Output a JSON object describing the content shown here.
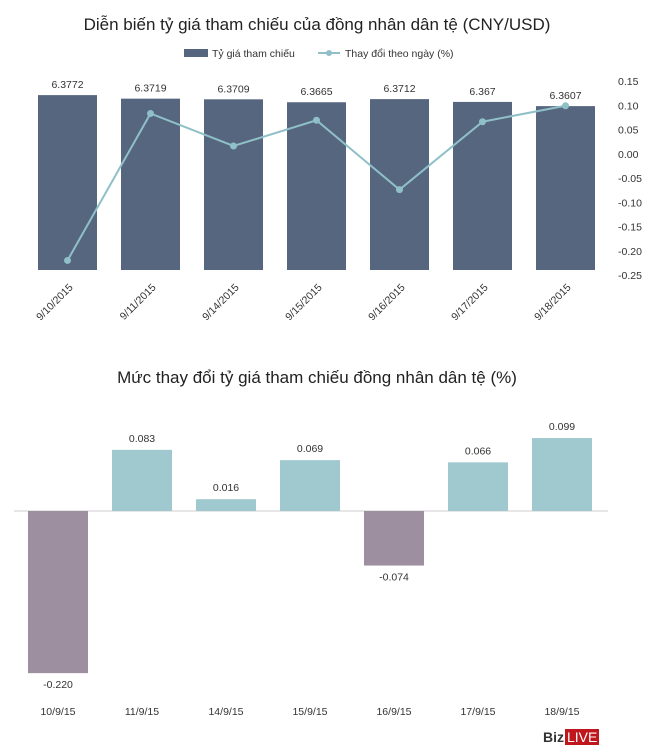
{
  "chart_data": [
    {
      "type": "bar+line",
      "title": "Diễn biến tỷ giá tham chiếu của đồng nhân dân tệ (CNY/USD)",
      "categories": [
        "9/10/2015",
        "9/11/2015",
        "9/14/2015",
        "9/15/2015",
        "9/16/2015",
        "9/17/2015",
        "9/18/2015"
      ],
      "series": [
        {
          "name": "Tỷ giá tham chiếu",
          "type": "bar",
          "axis": "left",
          "values": [
            6.3772,
            6.3719,
            6.3709,
            6.3665,
            6.3712,
            6.367,
            6.3607
          ],
          "labels": [
            "6.3772",
            "6.3719",
            "6.3709",
            "6.3665",
            "6.3712",
            "6.367",
            "6.3607"
          ],
          "color": "#56667f"
        },
        {
          "name": "Thay đổi theo ngày (%)",
          "type": "line",
          "axis": "right",
          "values": [
            -0.22,
            0.083,
            0.016,
            0.069,
            -0.074,
            0.066,
            0.099
          ],
          "color": "#8fc0c8"
        }
      ],
      "right_axis": {
        "ylim": [
          -0.25,
          0.15
        ],
        "ticks": [
          "0.15",
          "0.10",
          "0.05",
          "0.00",
          "-0.05",
          "-0.10",
          "-0.15",
          "-0.20",
          "-0.25"
        ]
      },
      "legend": "top"
    },
    {
      "type": "bar",
      "title": "Mức thay đổi tỷ giá tham chiếu đồng nhân dân tệ (%)",
      "categories": [
        "10/9/15",
        "11/9/15",
        "14/9/15",
        "15/9/15",
        "16/9/15",
        "17/9/15",
        "18/9/15"
      ],
      "values": [
        -0.22,
        0.083,
        0.016,
        0.069,
        -0.074,
        0.066,
        0.099
      ],
      "labels": [
        "-0.220",
        "0.083",
        "0.016",
        "0.069",
        "-0.074",
        "0.066",
        "0.099"
      ],
      "colors": {
        "positive": "#9fc8cf",
        "negative": "#9e8fa0"
      }
    }
  ],
  "logo": {
    "part1": "Biz",
    "part2": "LIVE"
  }
}
